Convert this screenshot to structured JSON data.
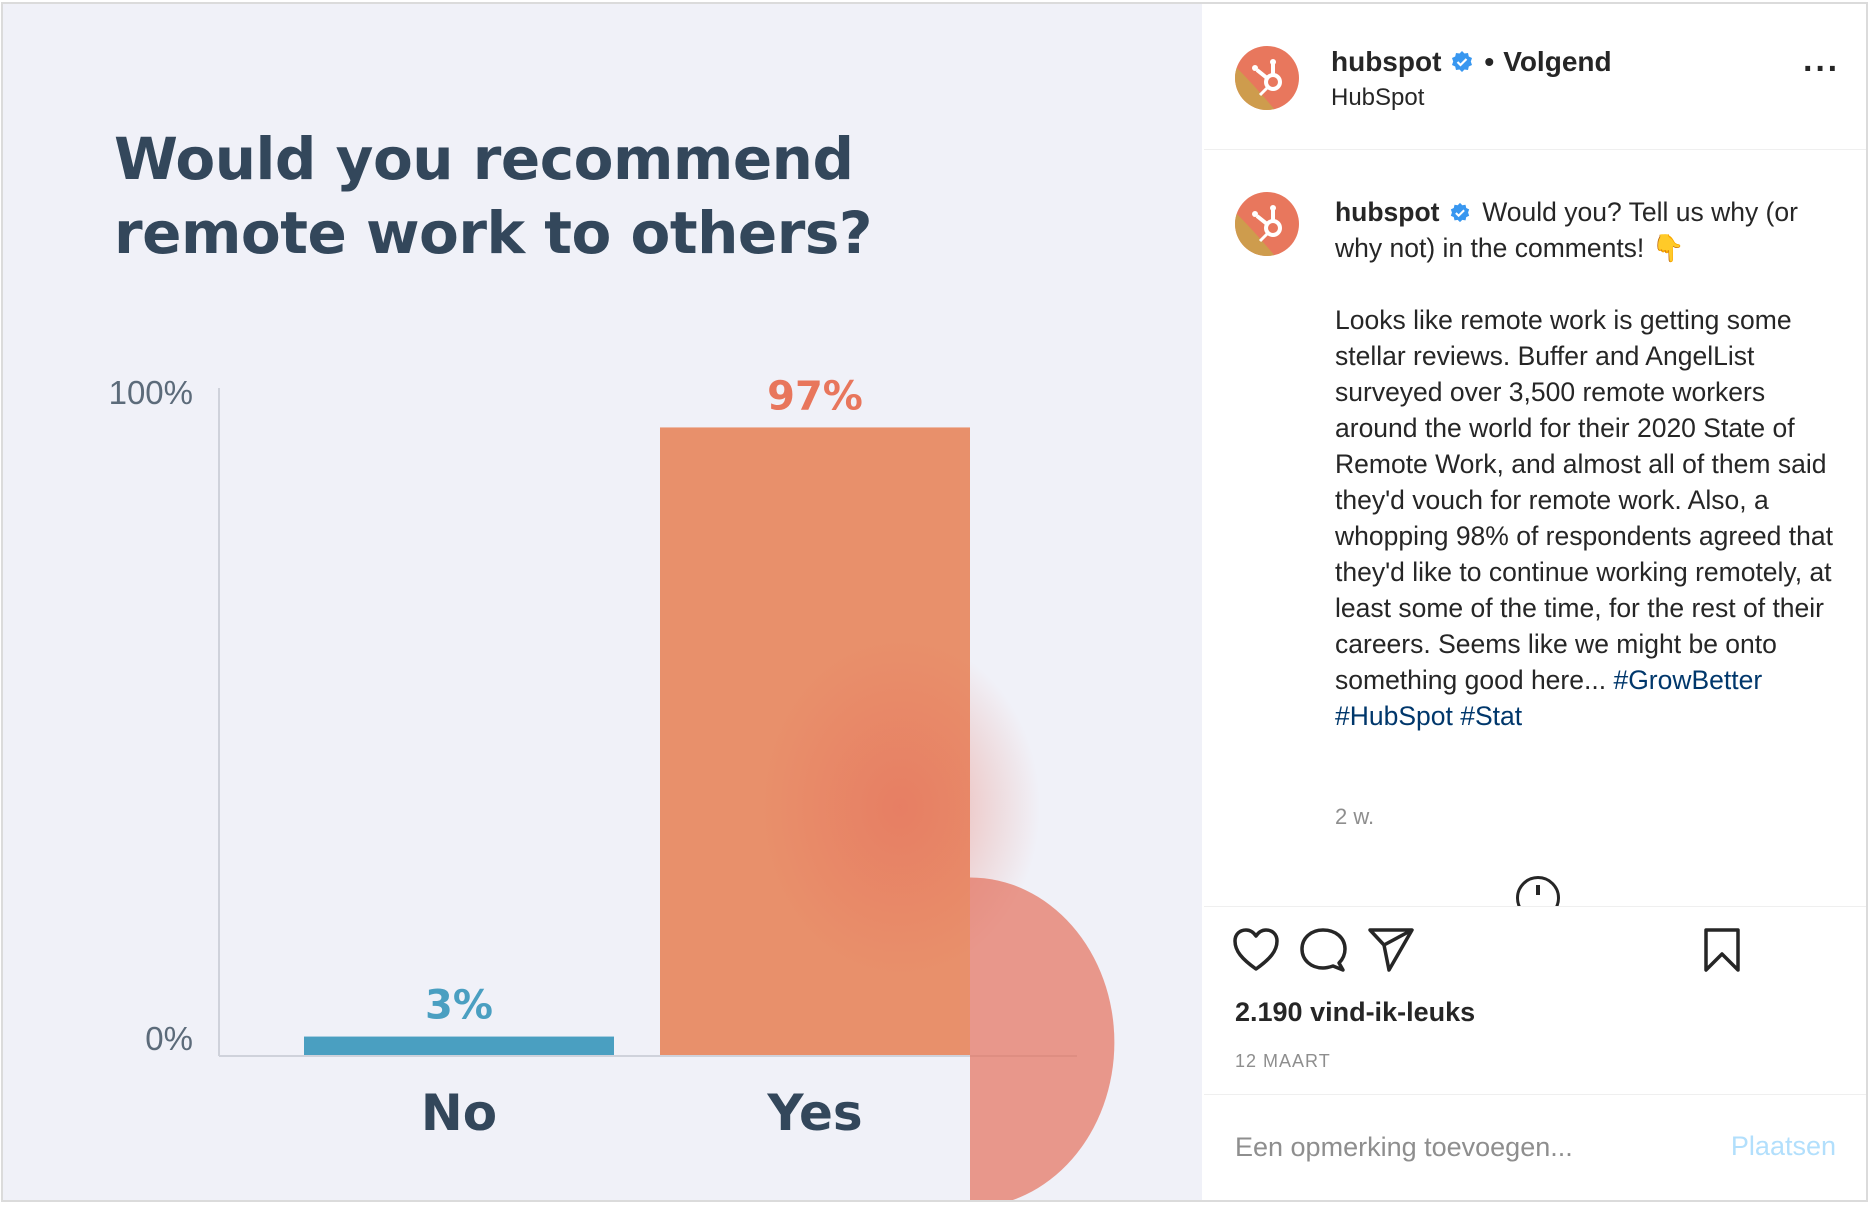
{
  "post_image": {
    "chart_title_lines": [
      "Would you recommend",
      "remote work to others?"
    ]
  },
  "chart_data": {
    "type": "bar",
    "categories": [
      "No",
      "Yes"
    ],
    "values": [
      3,
      97
    ],
    "value_labels": [
      "3%",
      "97%"
    ],
    "y_tick_labels": [
      "100%",
      "0%"
    ],
    "ylim": [
      0,
      100
    ],
    "colors": [
      "#4a9fc1",
      "#e8906b"
    ],
    "label_colors": [
      "#4a9fc1",
      "#e8765c"
    ],
    "axis_color": "#cfd2db",
    "text_color": "#33475b"
  },
  "header": {
    "username": "hubspot",
    "separator": "•",
    "follow_status": "Volgend",
    "subtitle": "HubSpot",
    "more_icon": "more-horizontal-icon"
  },
  "caption": {
    "username": "hubspot",
    "first_line": "Would you? Tell us why (or why not) in the comments! 👇",
    "body": "Looks like remote work is getting some stellar reviews. Buffer and AngelList surveyed over 3,500 remote workers around the world for their 2020 State of Remote Work, and almost all of them said they'd vouch for remote work. Also, a whopping 98% of respondents agreed that they'd like to continue working remotely, at least some of the time, for the rest of their careers. Seems like we might be onto something good here...",
    "hashtags": [
      "#GrowBetter",
      "#HubSpot",
      "#Stat"
    ],
    "age": "2 w."
  },
  "actions": {
    "icons": [
      "heart-icon",
      "comment-icon",
      "share-icon",
      "bookmark-icon"
    ],
    "likes": "2.190 vind-ik-leuks",
    "date": "12 MAART"
  },
  "comment": {
    "placeholder": "Een opmerking toevoegen...",
    "post_label": "Plaatsen"
  },
  "colors": {
    "brand_orange": "#e8775d",
    "verified_blue": "#3897f0",
    "link_blue": "#00376b",
    "post_disabled": "#b2dffc"
  }
}
